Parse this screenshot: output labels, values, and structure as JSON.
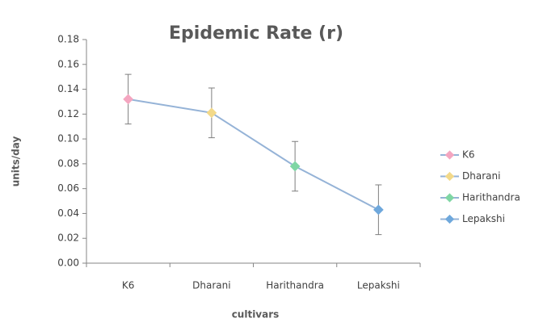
{
  "chart_data": {
    "type": "line",
    "title": "Epidemic Rate (r)",
    "x_label": "cultivars",
    "y_label": "units/day",
    "categories": [
      "K6",
      "Dharani",
      "Harithandra",
      "Lepakshi"
    ],
    "series": [
      {
        "name": "Epidemic Rate (r)",
        "color": "#95b3d7",
        "values": [
          0.132,
          0.121,
          0.078,
          0.043
        ],
        "errors": [
          0.02,
          0.02,
          0.02,
          0.02
        ],
        "point_colors": [
          "#f4a6c0",
          "#f2d98a",
          "#7fd6a4",
          "#6fa8dc"
        ]
      }
    ],
    "ylim": [
      0,
      0.18
    ],
    "yticks": [
      {
        "value": 0,
        "label": "0.00"
      },
      {
        "value": 0.02,
        "label": "0.02"
      },
      {
        "value": 0.04,
        "label": "0.04"
      },
      {
        "value": 0.06,
        "label": "0.06"
      },
      {
        "value": 0.08,
        "label": "0.08"
      },
      {
        "value": 0.1,
        "label": "0.10"
      },
      {
        "value": 0.12,
        "label": "0.12"
      },
      {
        "value": 0.14,
        "label": "0.14"
      },
      {
        "value": 0.16,
        "label": "0.16"
      },
      {
        "value": 0.18,
        "label": "0.18"
      }
    ],
    "legend_position": "right"
  }
}
